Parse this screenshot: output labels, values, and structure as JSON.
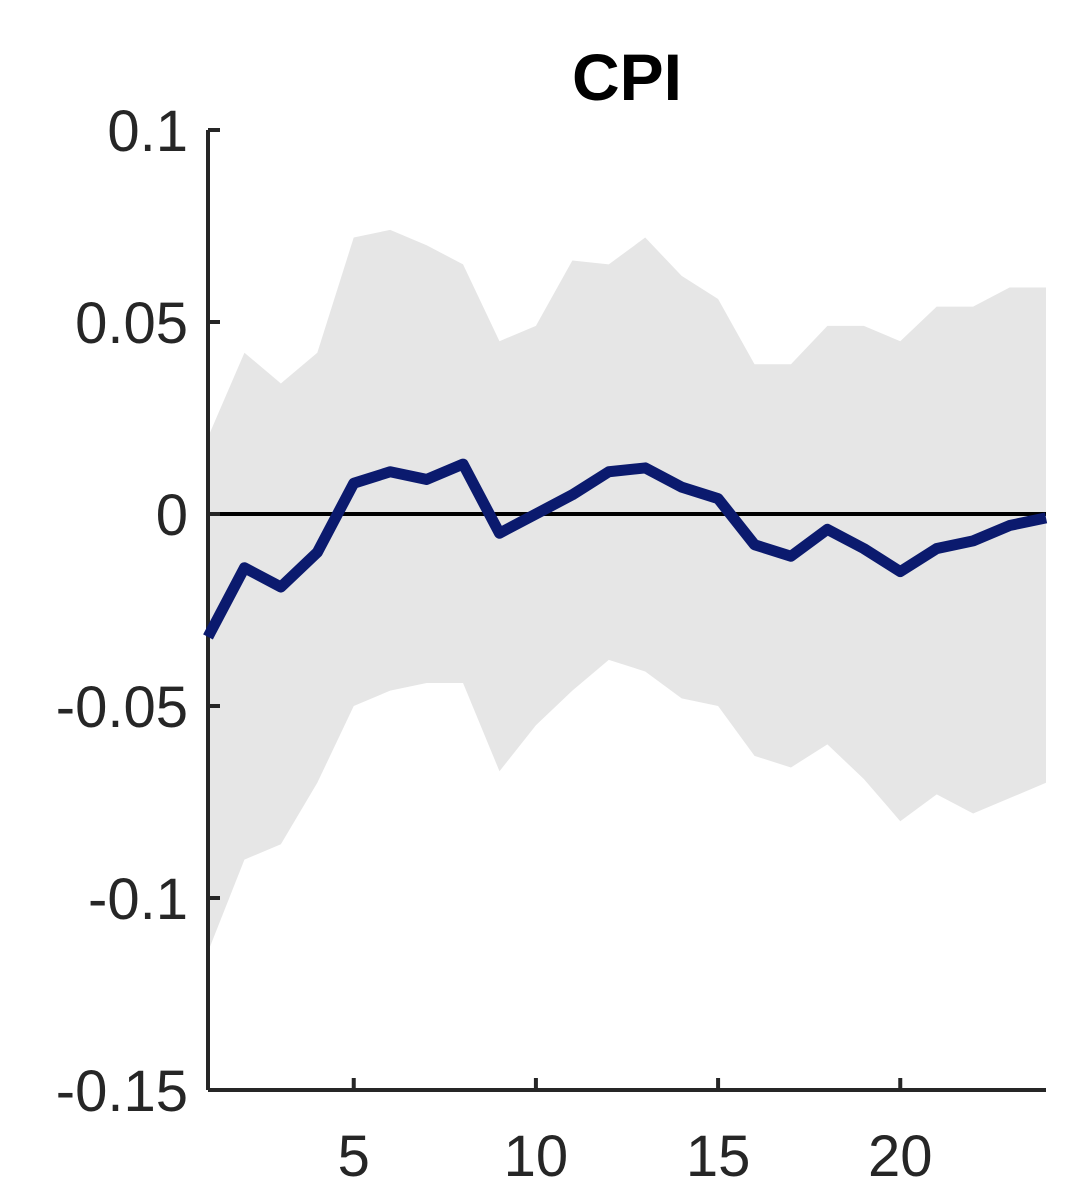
{
  "chart_data": {
    "type": "line",
    "title": "CPI",
    "xlabel": "",
    "ylabel": "",
    "xlim": [
      1,
      24
    ],
    "ylim": [
      -0.15,
      0.1
    ],
    "x_ticks": [
      5,
      10,
      15,
      20
    ],
    "y_ticks": [
      0.1,
      0.05,
      0,
      -0.05,
      -0.1,
      -0.15
    ],
    "y_tick_labels": [
      "0.1",
      "0.05",
      "0",
      "-0.05",
      "-0.1",
      "-0.15"
    ],
    "grid": false,
    "legend": "none",
    "zero_line": 0,
    "x": [
      1,
      2,
      3,
      4,
      5,
      6,
      7,
      8,
      9,
      10,
      11,
      12,
      13,
      14,
      15,
      16,
      17,
      18,
      19,
      20,
      21,
      22,
      23,
      24
    ],
    "series": [
      {
        "values": [
          -0.032,
          -0.014,
          -0.019,
          -0.01,
          0.008,
          0.011,
          0.009,
          0.013,
          -0.005,
          0.0,
          0.005,
          0.011,
          0.012,
          0.007,
          0.004,
          -0.008,
          -0.011,
          -0.004,
          -0.009,
          -0.015,
          -0.009,
          -0.007,
          -0.003,
          -0.001
        ],
        "color": "#0b1a6e"
      }
    ],
    "band": {
      "upper": [
        0.02,
        0.042,
        0.034,
        0.042,
        0.072,
        0.074,
        0.07,
        0.065,
        0.045,
        0.049,
        0.066,
        0.065,
        0.072,
        0.062,
        0.056,
        0.039,
        0.039,
        0.049,
        0.049,
        0.045,
        0.054,
        0.054,
        0.059,
        0.059
      ],
      "lower": [
        -0.114,
        -0.09,
        -0.086,
        -0.07,
        -0.05,
        -0.046,
        -0.044,
        -0.044,
        -0.067,
        -0.055,
        -0.046,
        -0.038,
        -0.041,
        -0.048,
        -0.05,
        -0.063,
        -0.066,
        -0.06,
        -0.069,
        -0.08,
        -0.073,
        -0.078,
        -0.074,
        -0.07
      ],
      "color": "#e6e6e6"
    },
    "colors": {
      "axis": "#262626",
      "zero_line": "#000000"
    }
  }
}
